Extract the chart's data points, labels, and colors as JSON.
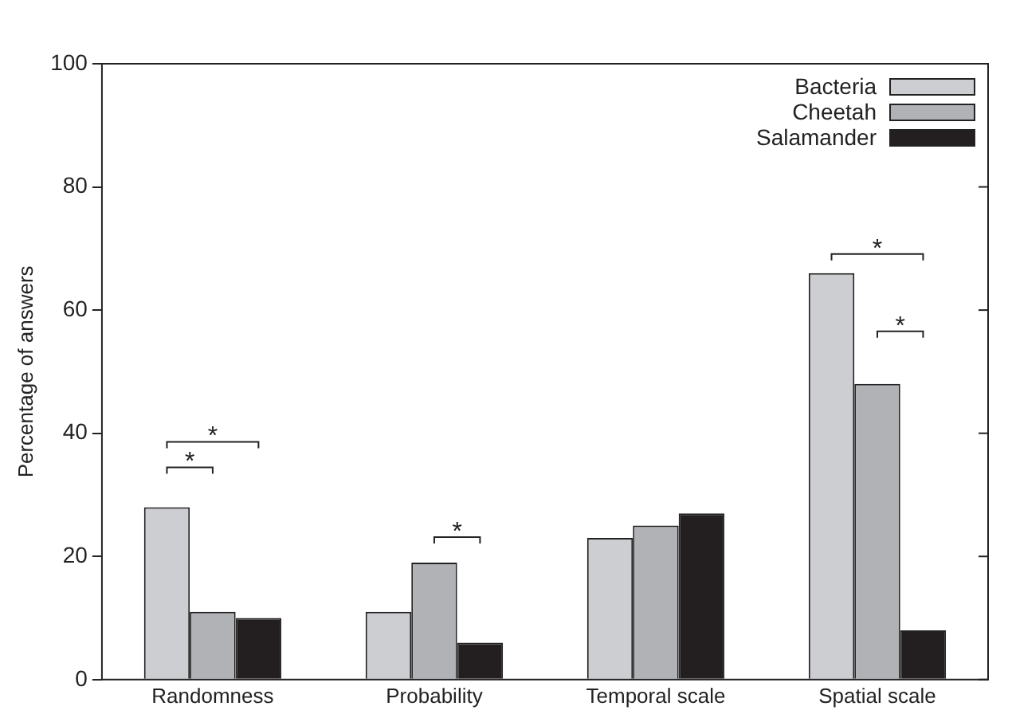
{
  "chart_data": {
    "type": "bar",
    "ylabel": "Percentage of answers",
    "categories": [
      "Randomness",
      "Probability",
      "Temporal scale",
      "Spatial scale"
    ],
    "series": [
      {
        "name": "Bacteria",
        "color": "#cdced1",
        "values": [
          28,
          11,
          23,
          66
        ]
      },
      {
        "name": "Cheetah",
        "color": "#b1b2b6",
        "values": [
          11,
          19,
          25,
          48
        ]
      },
      {
        "name": "Salamander",
        "color": "#231f20",
        "values": [
          10,
          6,
          27,
          8
        ]
      }
    ],
    "ylim": [
      0,
      100
    ],
    "yticks": [
      0,
      20,
      40,
      60,
      80,
      100
    ],
    "grid": false,
    "legend": "top right",
    "annotations": [
      "*",
      "*",
      "*",
      "*",
      "*"
    ]
  }
}
